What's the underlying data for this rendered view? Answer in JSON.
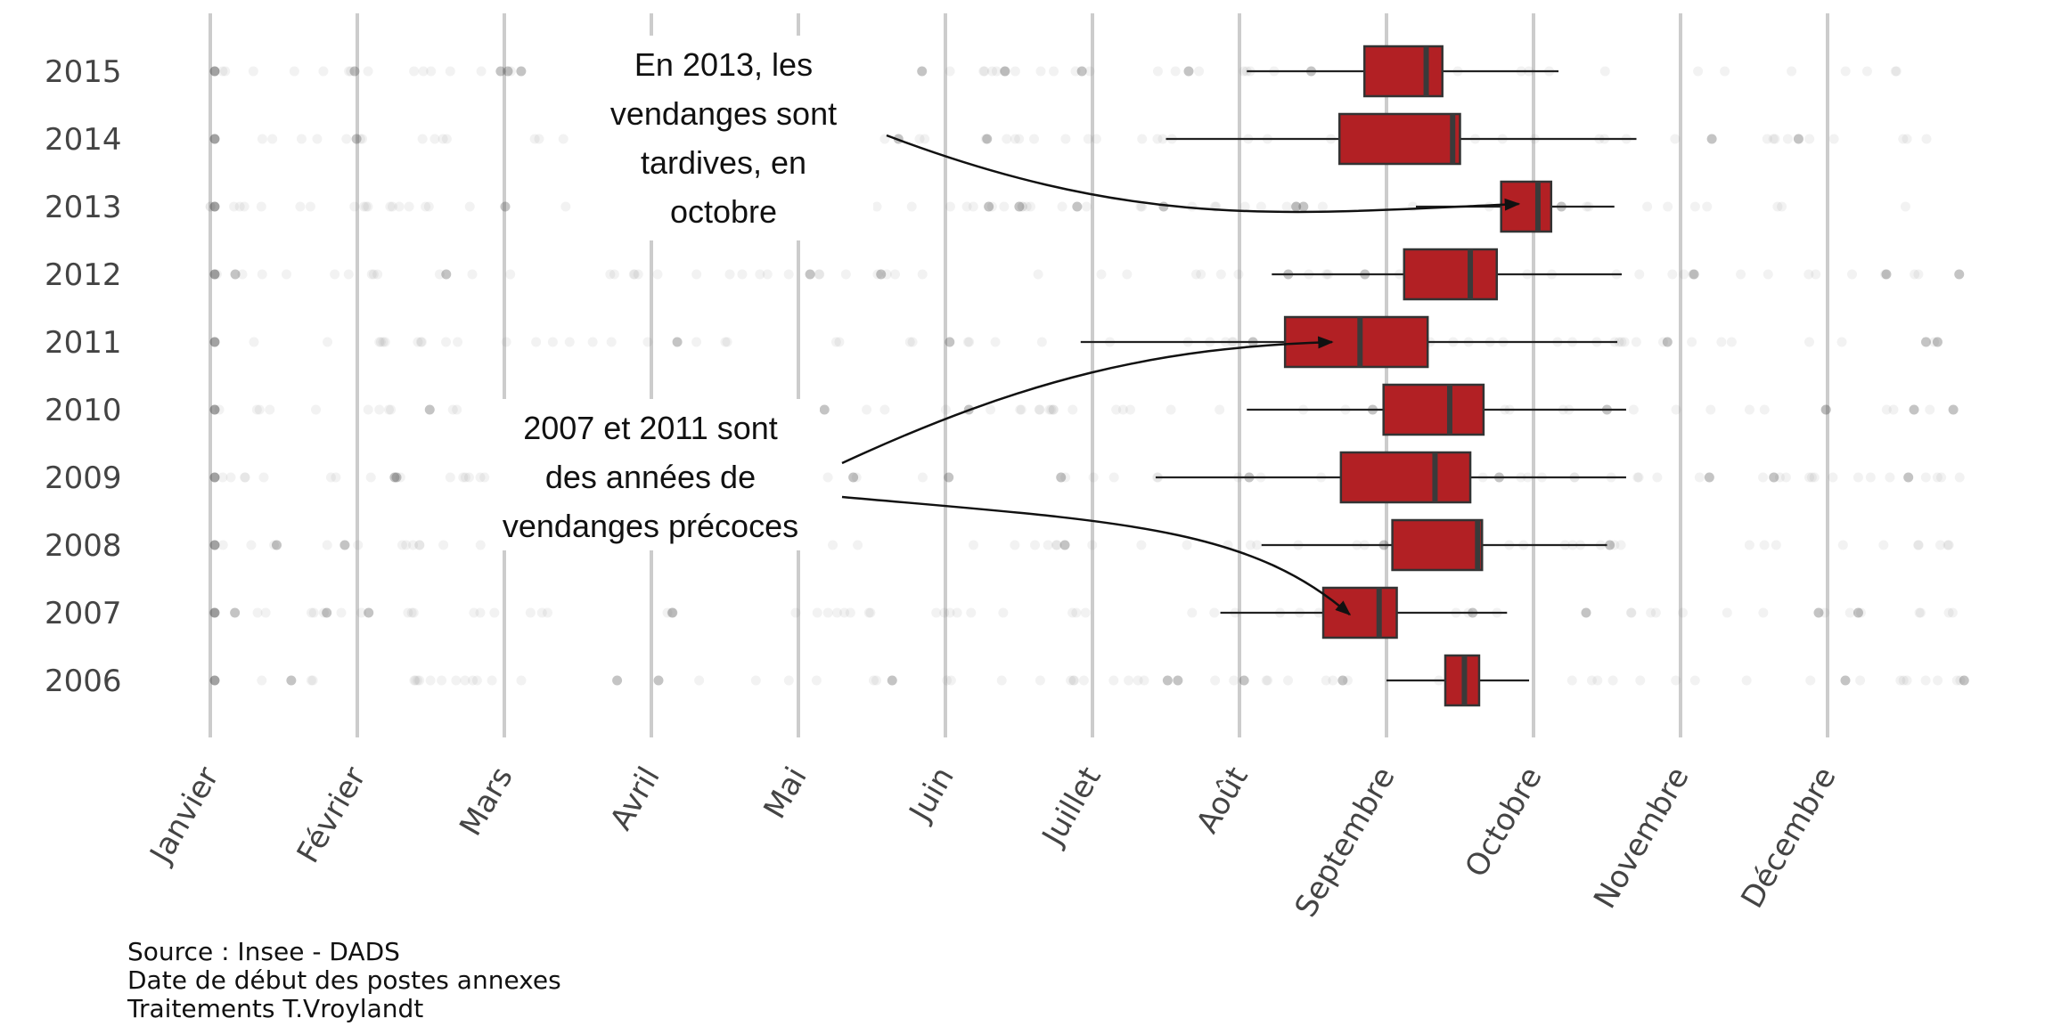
{
  "chart_data": {
    "type": "boxplot",
    "title": "",
    "xlabel": "",
    "ylabel": "",
    "x_axis": {
      "months": [
        "Janvier",
        "Février",
        "Mars",
        "Avril",
        "Mai",
        "Juin",
        "Juillet",
        "Août",
        "Septembre",
        "Octobre",
        "Novembre",
        "Décembre"
      ],
      "range_months": [
        0,
        12.1
      ],
      "unit": "month of start date (0 = 1 Janvier)"
    },
    "categories": [
      "2015",
      "2014",
      "2013",
      "2012",
      "2011",
      "2010",
      "2009",
      "2008",
      "2007",
      "2006"
    ],
    "box_color": "#b22024",
    "box_stroke": "#333333",
    "grid_color": "#cccccc",
    "boxes": [
      {
        "year": "2015",
        "whisker_low": 7.05,
        "q1": 7.85,
        "median": 8.27,
        "q3": 8.38,
        "whisker_high": 9.17
      },
      {
        "year": "2014",
        "whisker_low": 6.5,
        "q1": 7.68,
        "median": 8.45,
        "q3": 8.5,
        "whisker_high": 9.7
      },
      {
        "year": "2013",
        "whisker_low": 8.2,
        "q1": 8.78,
        "median": 9.03,
        "q3": 9.12,
        "whisker_high": 9.55
      },
      {
        "year": "2012",
        "whisker_low": 7.22,
        "q1": 8.12,
        "median": 8.57,
        "q3": 8.75,
        "whisker_high": 9.6
      },
      {
        "year": "2011",
        "whisker_low": 5.92,
        "q1": 7.31,
        "median": 7.82,
        "q3": 8.28,
        "whisker_high": 9.57
      },
      {
        "year": "2010",
        "whisker_low": 7.05,
        "q1": 7.98,
        "median": 8.43,
        "q3": 8.66,
        "whisker_high": 9.63
      },
      {
        "year": "2009",
        "whisker_low": 6.43,
        "q1": 7.69,
        "median": 8.33,
        "q3": 8.57,
        "whisker_high": 9.63
      },
      {
        "year": "2008",
        "whisker_low": 7.15,
        "q1": 8.04,
        "median": 8.62,
        "q3": 8.65,
        "whisker_high": 9.5
      },
      {
        "year": "2007",
        "whisker_low": 6.87,
        "q1": 7.57,
        "median": 7.95,
        "q3": 8.07,
        "whisker_high": 8.82
      },
      {
        "year": "2006",
        "whisker_low": 8.0,
        "q1": 8.4,
        "median": 8.53,
        "q3": 8.63,
        "whisker_high": 8.97
      }
    ],
    "annotations": [
      {
        "lines": [
          "En 2013, les",
          "vendanges sont",
          "tardives, en",
          "octobre"
        ],
        "target_year": "2013",
        "target_value": 8.9
      },
      {
        "lines": [
          "2007 et 2011 sont",
          "des années de",
          "vendanges précoces"
        ],
        "target_years": [
          "2011",
          "2007"
        ],
        "target_values": [
          7.63,
          7.75
        ]
      }
    ],
    "caption": [
      "Source : Insee - DADS",
      "Date de début des postes annexes",
      "Traitements T.Vroylandt"
    ]
  }
}
